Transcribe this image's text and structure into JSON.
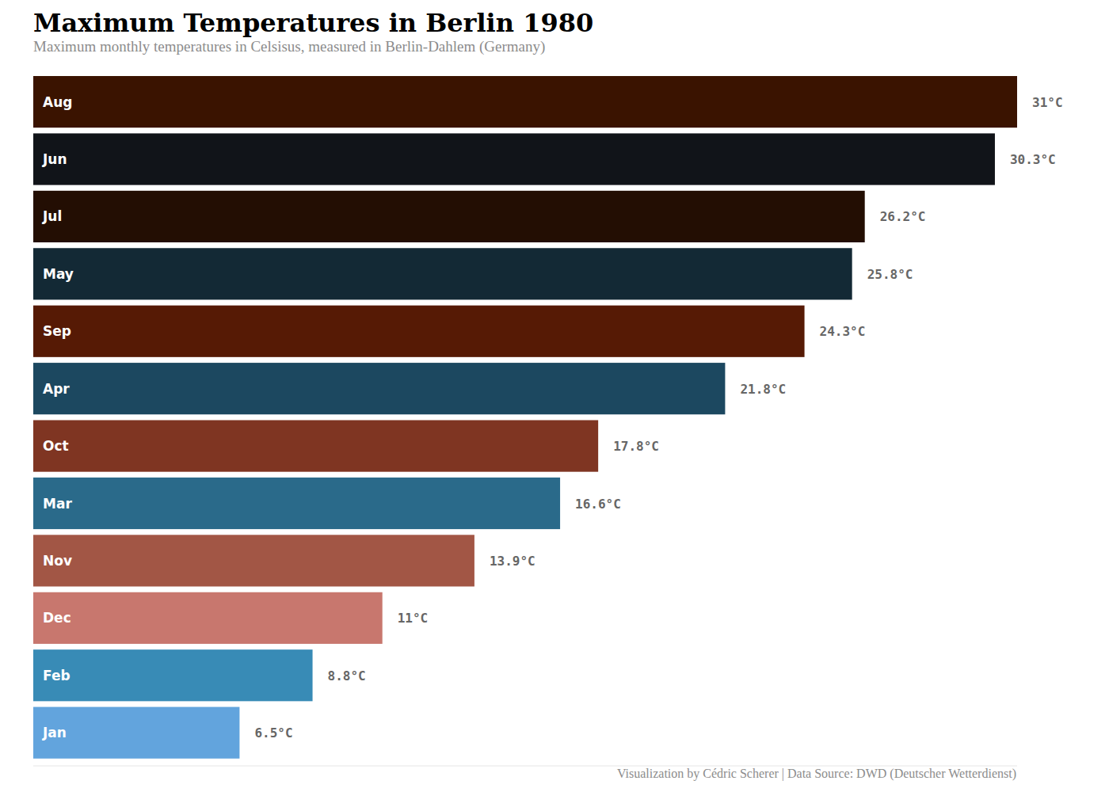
{
  "chart_data": {
    "type": "bar",
    "orientation": "horizontal",
    "title": "Maximum Temperatures in Berlin 1980",
    "subtitle": "Maximum monthly temperatures in Celsisus, measured in Berlin-Dahlem (Germany)",
    "caption": "Visualization by Cédric Scherer | Data Source: DWD (Deutscher Wetterdienst)",
    "categories": [
      "Aug",
      "Jun",
      "Jul",
      "May",
      "Sep",
      "Apr",
      "Oct",
      "Mar",
      "Nov",
      "Dec",
      "Feb",
      "Jan"
    ],
    "values": [
      31,
      30.3,
      26.2,
      25.8,
      24.3,
      21.8,
      17.8,
      16.6,
      13.9,
      11,
      8.8,
      6.5
    ],
    "value_labels": [
      "31°C",
      "30.3°C",
      "26.2°C",
      "25.8°C",
      "24.3°C",
      "21.8°C",
      "17.8°C",
      "16.6°C",
      "13.9°C",
      "11°C",
      "8.8°C",
      "6.5°C"
    ],
    "colors": [
      "#3a1300",
      "#111419",
      "#230e03",
      "#132935",
      "#561a05",
      "#1c4860",
      "#7f3522",
      "#2a6a8a",
      "#a25645",
      "#c8776e",
      "#388bb6",
      "#62a4dd"
    ],
    "xlim": [
      0,
      31
    ],
    "data_labels": true,
    "tick_labels": false,
    "grid": false
  }
}
